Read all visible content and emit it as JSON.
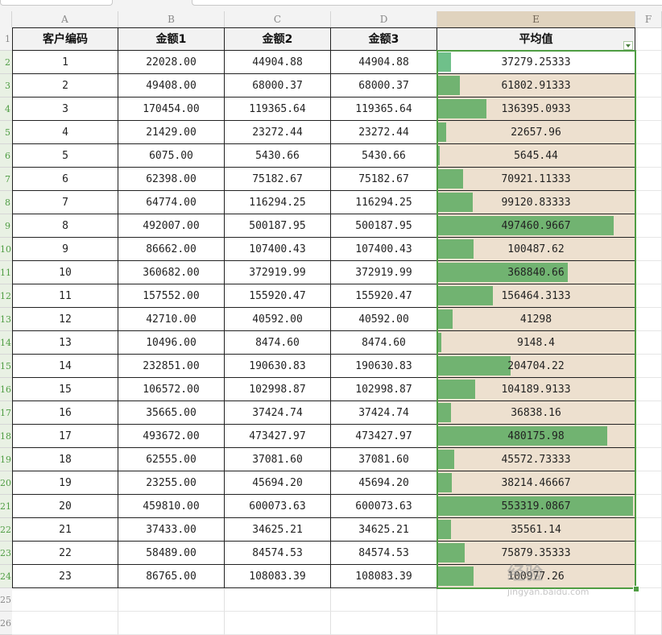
{
  "column_letters": [
    "A",
    "B",
    "C",
    "D",
    "E",
    "F"
  ],
  "selected_column": "E",
  "row_numbers": [
    "1",
    "2",
    "3",
    "4",
    "5",
    "6",
    "7",
    "8",
    "9",
    "10",
    "11",
    "12",
    "13",
    "14",
    "15",
    "16",
    "17",
    "18",
    "19",
    "20",
    "21",
    "22",
    "23",
    "24",
    "25",
    "26"
  ],
  "table": {
    "headers": [
      "客户编码",
      "金额1",
      "金额2",
      "金额3",
      "平均值"
    ],
    "rows": [
      [
        "1",
        "22028.00",
        "44904.88",
        "44904.88",
        "37279.25333"
      ],
      [
        "2",
        "49408.00",
        "68000.37",
        "68000.37",
        "61802.91333"
      ],
      [
        "3",
        "170454.00",
        "119365.64",
        "119365.64",
        "136395.0933"
      ],
      [
        "4",
        "21429.00",
        "23272.44",
        "23272.44",
        "22657.96"
      ],
      [
        "5",
        "6075.00",
        "5430.66",
        "5430.66",
        "5645.44"
      ],
      [
        "6",
        "62398.00",
        "75182.67",
        "75182.67",
        "70921.11333"
      ],
      [
        "7",
        "64774.00",
        "116294.25",
        "116294.25",
        "99120.83333"
      ],
      [
        "8",
        "492007.00",
        "500187.95",
        "500187.95",
        "497460.9667"
      ],
      [
        "9",
        "86662.00",
        "107400.43",
        "107400.43",
        "100487.62"
      ],
      [
        "10",
        "360682.00",
        "372919.99",
        "372919.99",
        "368840.66"
      ],
      [
        "11",
        "157552.00",
        "155920.47",
        "155920.47",
        "156464.3133"
      ],
      [
        "12",
        "42710.00",
        "40592.00",
        "40592.00",
        "41298"
      ],
      [
        "13",
        "10496.00",
        "8474.60",
        "8474.60",
        "9148.4"
      ],
      [
        "14",
        "232851.00",
        "190630.83",
        "190630.83",
        "204704.22"
      ],
      [
        "15",
        "106572.00",
        "102998.87",
        "102998.87",
        "104189.9133"
      ],
      [
        "16",
        "35665.00",
        "37424.74",
        "37424.74",
        "36838.16"
      ],
      [
        "17",
        "493672.00",
        "473427.97",
        "473427.97",
        "480175.98"
      ],
      [
        "18",
        "62555.00",
        "37081.60",
        "37081.60",
        "45572.73333"
      ],
      [
        "19",
        "23255.00",
        "45694.20",
        "45694.20",
        "38214.46667"
      ],
      [
        "20",
        "459810.00",
        "600073.63",
        "600073.63",
        "553319.0867"
      ],
      [
        "21",
        "37433.00",
        "34625.21",
        "34625.21",
        "35561.14"
      ],
      [
        "22",
        "58489.00",
        "84574.53",
        "84574.53",
        "75879.35333"
      ],
      [
        "23",
        "86765.00",
        "108083.39",
        "108083.39",
        "100977.26"
      ]
    ]
  },
  "data_bar_max": 553319.0867,
  "colors": {
    "data_bar": "#71b371",
    "column_e_fill": "#ede0cf",
    "selection": "#4f9d43"
  },
  "watermark": {
    "brand": "经验",
    "url": "jingyan.baidu.com"
  }
}
